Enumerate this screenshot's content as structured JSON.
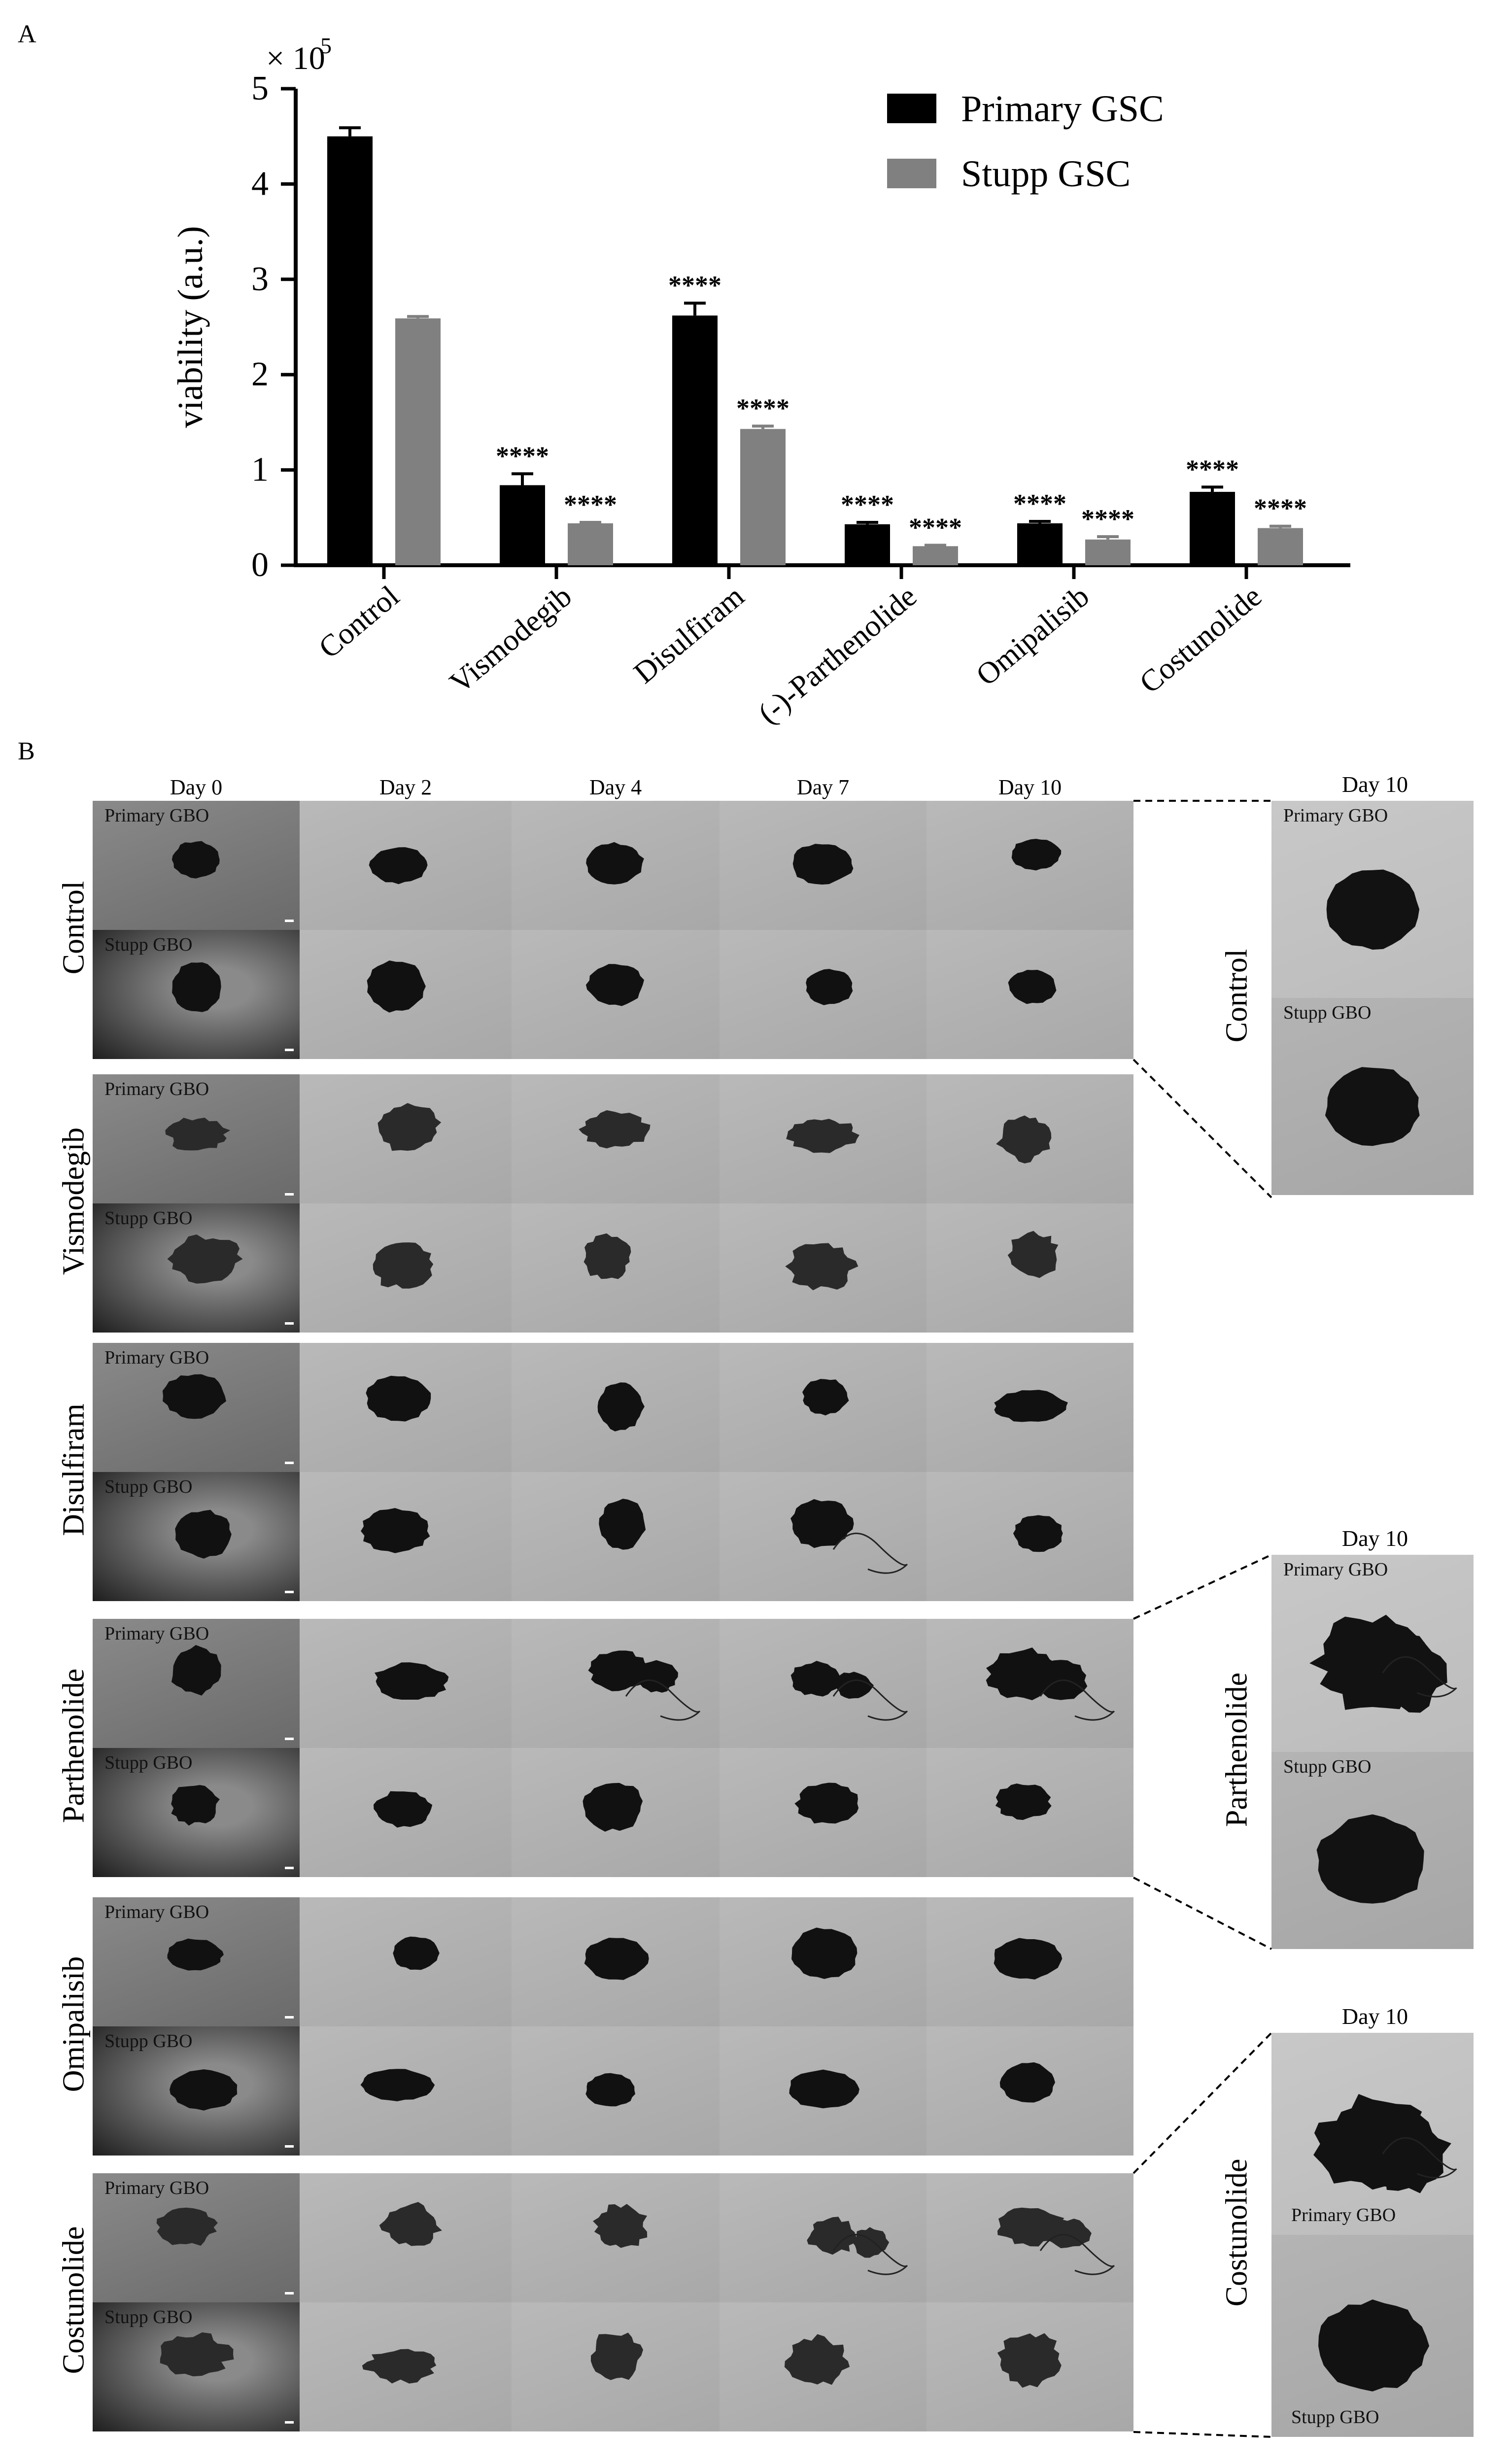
{
  "panels": {
    "a": "A",
    "b": "B"
  },
  "chart_data": {
    "type": "bar",
    "categories": [
      "Control",
      "Vismodegib",
      "Disulfiram",
      "(-)-Parthenolide",
      "Omipalisib",
      "Costunolide"
    ],
    "series": [
      {
        "name": "Primary GSC",
        "color": "#000000",
        "values": [
          4.5,
          0.84,
          2.62,
          0.43,
          0.44,
          0.77
        ],
        "errors": [
          0.09,
          0.12,
          0.13,
          0.02,
          0.02,
          0.05
        ]
      },
      {
        "name": "Stupp GSC",
        "color": "#808080",
        "values": [
          2.59,
          0.44,
          1.43,
          0.2,
          0.27,
          0.39
        ],
        "errors": [
          0.02,
          0.01,
          0.03,
          0.01,
          0.03,
          0.02
        ]
      }
    ],
    "significance": [
      [
        "",
        "****",
        "****",
        "****",
        "****",
        "****"
      ],
      [
        "",
        "****",
        "****",
        "****",
        "****",
        "****"
      ]
    ],
    "ylabel": "viability (a.u.)",
    "multiplier": "× 10",
    "multiplier_exp": "5",
    "ylim": [
      0,
      5
    ],
    "yticks": [
      0,
      1,
      2,
      3,
      4,
      5
    ],
    "legend_position": "top-right"
  },
  "grid": {
    "days": [
      "Day 0",
      "Day 2",
      "Day 4",
      "Day 7",
      "Day 10"
    ],
    "treatments": [
      "Control",
      "Vismodegib",
      "Disulfiram",
      "Parthenolide",
      "Omipalisib",
      "Costunolide"
    ],
    "primary_label": "Primary GBO",
    "stupp_label": "Stupp GBO"
  },
  "zoom": {
    "day_label": "Day 10",
    "items": [
      {
        "treatment": "Control",
        "top_label": "Primary GBO",
        "bottom_label": "Stupp GBO"
      },
      {
        "treatment": "Parthenolide",
        "top_label": "Primary GBO",
        "bottom_label": "Stupp GBO"
      },
      {
        "treatment": "Costunolide",
        "top_label": "Primary GBO",
        "bottom_label": "Stupp GBO"
      }
    ]
  }
}
